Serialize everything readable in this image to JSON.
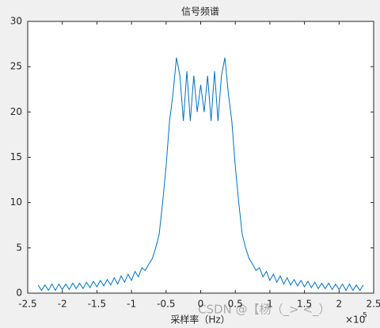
{
  "chart_data": {
    "type": "line",
    "title": "信号频谱",
    "xlabel": "采样率（Hz）",
    "x_multiplier": {
      "base": "×10",
      "exponent": "5"
    },
    "watermark": "CSDN @【杨（_> <_）",
    "color": "#0072bd",
    "xlim": [
      -250000,
      250000
    ],
    "ylim": [
      0,
      30
    ],
    "xticks": [
      {
        "value": -250000,
        "label": "-2.5"
      },
      {
        "value": -200000,
        "label": "-2"
      },
      {
        "value": -150000,
        "label": "-1.5"
      },
      {
        "value": -100000,
        "label": "-1"
      },
      {
        "value": -50000,
        "label": "-0.5"
      },
      0,
      {
        "value": 50000,
        "label": "0.5"
      },
      {
        "value": 100000,
        "label": "1"
      },
      {
        "value": 150000,
        "label": "1.5"
      },
      {
        "value": 200000,
        "label": "2"
      },
      {
        "value": 250000,
        "label": "2.5"
      }
    ],
    "yticks": [
      0,
      5,
      10,
      15,
      20,
      25,
      30
    ],
    "x": [
      -235000,
      -230000,
      -225000,
      -220000,
      -215000,
      -210000,
      -205000,
      -200000,
      -195000,
      -190000,
      -185000,
      -180000,
      -175000,
      -170000,
      -165000,
      -160000,
      -155000,
      -150000,
      -145000,
      -140000,
      -135000,
      -130000,
      -125000,
      -120000,
      -115000,
      -110000,
      -105000,
      -100000,
      -95000,
      -90000,
      -85000,
      -80000,
      -75000,
      -70000,
      -65000,
      -60000,
      -55000,
      -50000,
      -45000,
      -40000,
      -35000,
      -30000,
      -25000,
      -20000,
      -15000,
      -10000,
      -5000,
      0,
      5000,
      10000,
      15000,
      20000,
      25000,
      30000,
      35000,
      40000,
      45000,
      50000,
      55000,
      60000,
      65000,
      70000,
      75000,
      80000,
      85000,
      90000,
      95000,
      100000,
      105000,
      110000,
      115000,
      120000,
      125000,
      130000,
      135000,
      140000,
      145000,
      150000,
      155000,
      160000,
      165000,
      170000,
      175000,
      180000,
      185000,
      190000,
      195000,
      200000,
      205000,
      210000,
      215000,
      220000,
      225000,
      230000,
      235000
    ],
    "values": [
      0.9,
      0.3,
      0.9,
      0.3,
      1.0,
      0.3,
      1.0,
      0.4,
      1.0,
      0.4,
      1.1,
      0.5,
      1.1,
      0.5,
      1.2,
      0.6,
      1.3,
      0.7,
      1.4,
      0.8,
      1.5,
      0.9,
      1.7,
      1.0,
      1.9,
      1.2,
      2.1,
      1.4,
      2.4,
      1.8,
      2.8,
      2.5,
      3.2,
      3.8,
      5,
      6.5,
      10,
      14,
      19,
      22,
      26,
      24,
      19,
      24.5,
      19,
      24,
      20,
      23,
      20,
      24,
      19,
      24.5,
      19,
      24,
      26,
      22,
      19,
      14,
      10,
      6.5,
      5,
      3.8,
      3.2,
      2.5,
      2.8,
      1.8,
      2.4,
      1.4,
      2.1,
      1.2,
      1.9,
      1.0,
      1.7,
      0.9,
      1.5,
      0.8,
      1.4,
      0.7,
      1.3,
      0.6,
      1.2,
      0.5,
      1.1,
      0.5,
      1.1,
      0.4,
      1.0,
      0.4,
      1.0,
      0.3,
      1.0,
      0.3,
      0.9,
      0.3,
      0.9
    ]
  }
}
